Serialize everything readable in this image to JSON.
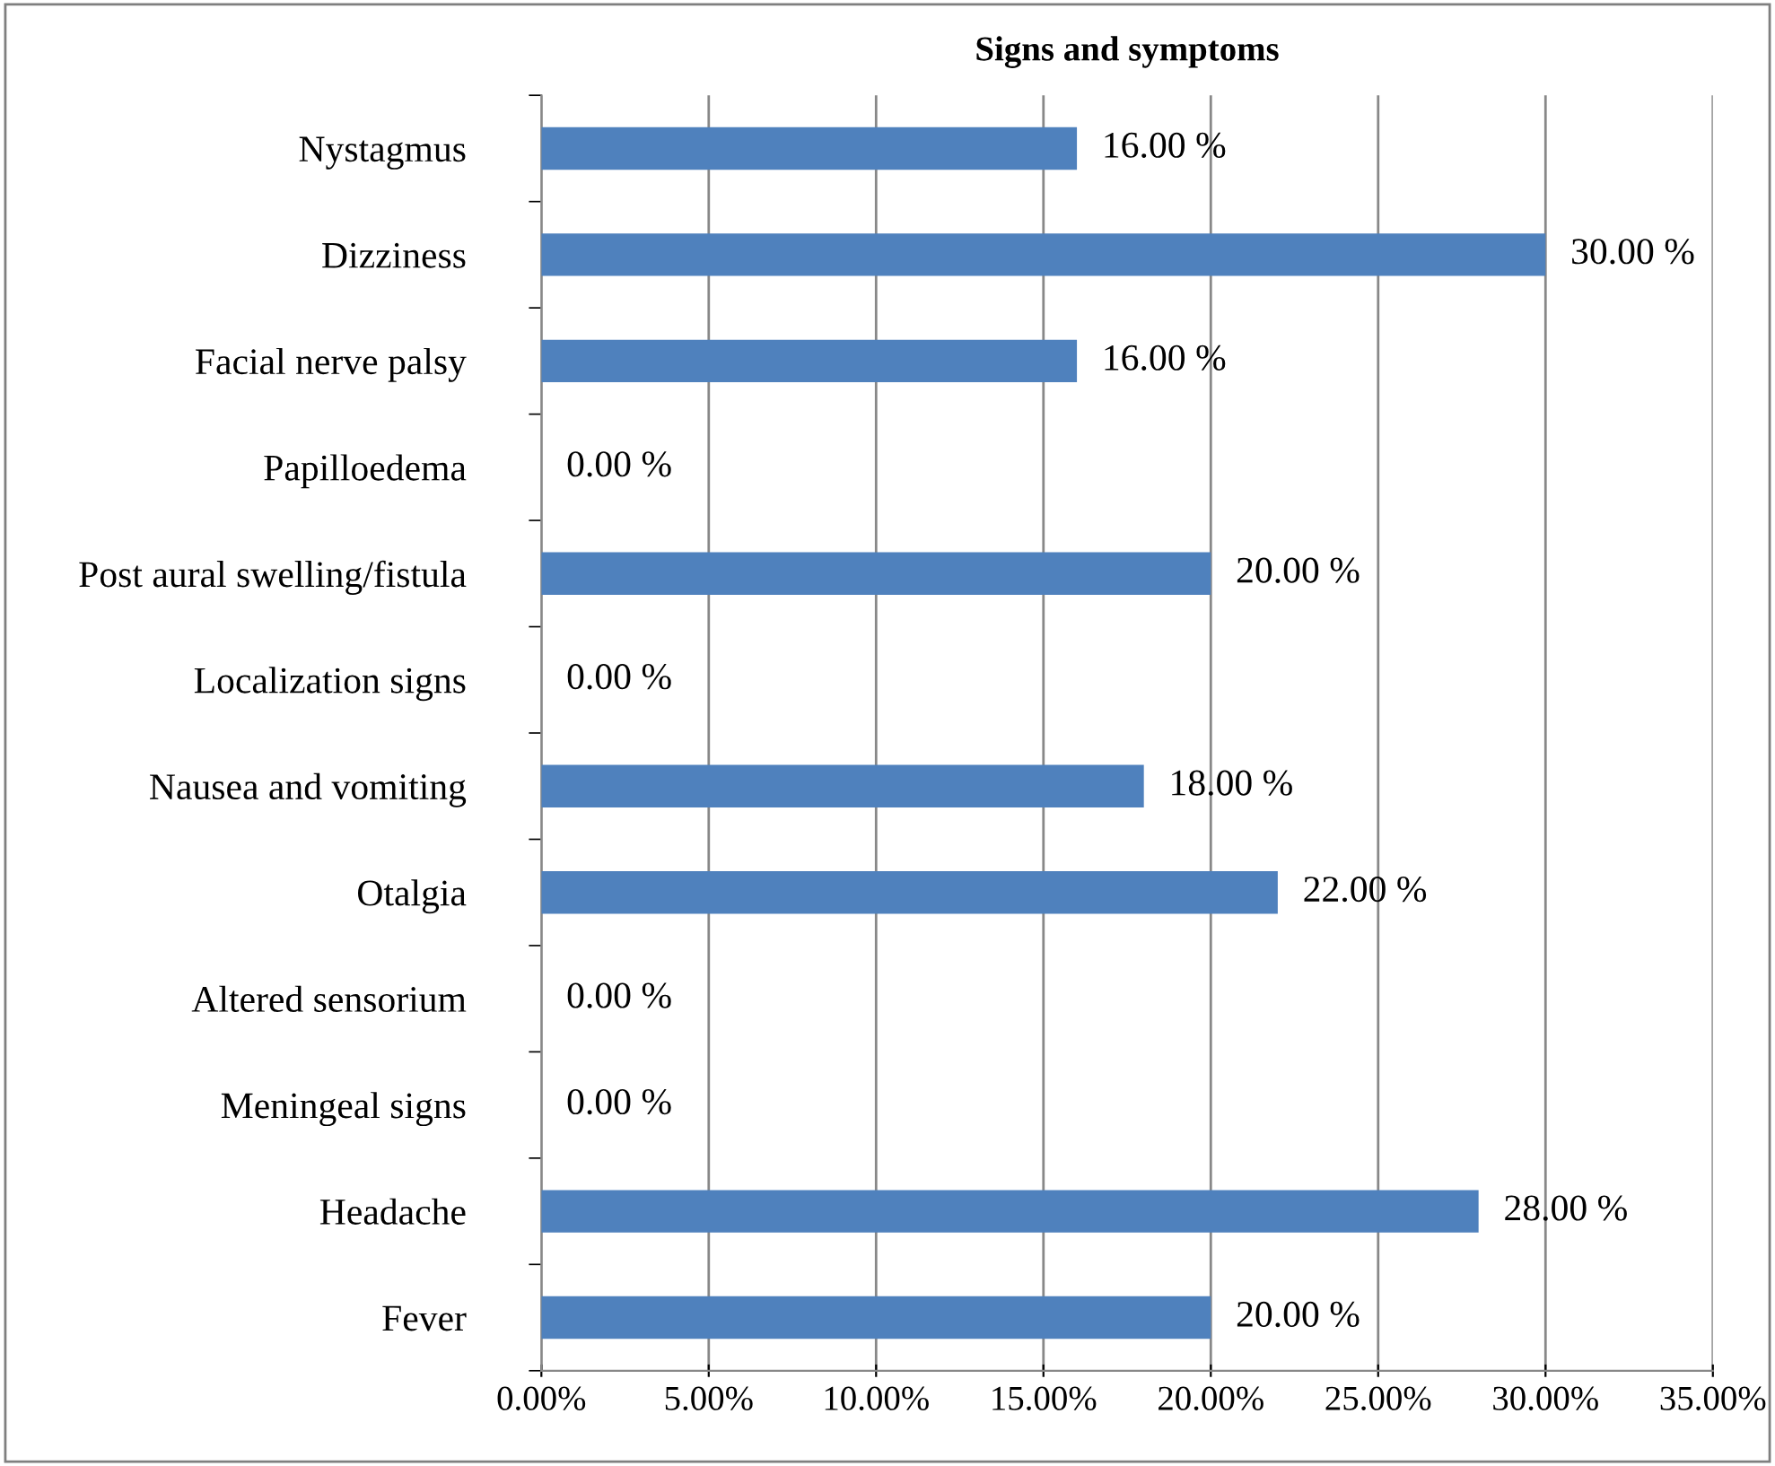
{
  "chart_data": {
    "type": "bar",
    "orientation": "horizontal",
    "title": "Signs and symptoms",
    "categories": [
      "Nystagmus",
      "Dizziness",
      "Facial nerve palsy",
      "Papilloedema",
      "Post aural swelling/fistula",
      "Localization signs",
      "Nausea and vomiting",
      "Otalgia",
      "Altered sensorium",
      "Meningeal signs",
      "Headache",
      "Fever"
    ],
    "values": [
      16,
      30,
      16,
      0,
      20,
      0,
      18,
      22,
      0,
      0,
      28,
      20
    ],
    "value_labels": [
      "16.00 %",
      "30.00 %",
      "16.00 %",
      "0.00 %",
      "20.00 %",
      "0.00 %",
      "18.00 %",
      "22.00 %",
      "0.00 %",
      "0.00 %",
      "28.00 %",
      "20.00 %"
    ],
    "color": "#4f81bd",
    "xlim": [
      0,
      35
    ],
    "xticks": [
      {
        "value": 0,
        "label": "0.00%"
      },
      {
        "value": 5,
        "label": "5.00%"
      },
      {
        "value": 10,
        "label": "10.00%"
      },
      {
        "value": 15,
        "label": "15.00%"
      },
      {
        "value": 20,
        "label": "20.00%"
      },
      {
        "value": 25,
        "label": "25.00%"
      },
      {
        "value": 30,
        "label": "30.00%"
      },
      {
        "value": 35,
        "label": "35.00%"
      }
    ],
    "grid": "x",
    "legend": false
  }
}
